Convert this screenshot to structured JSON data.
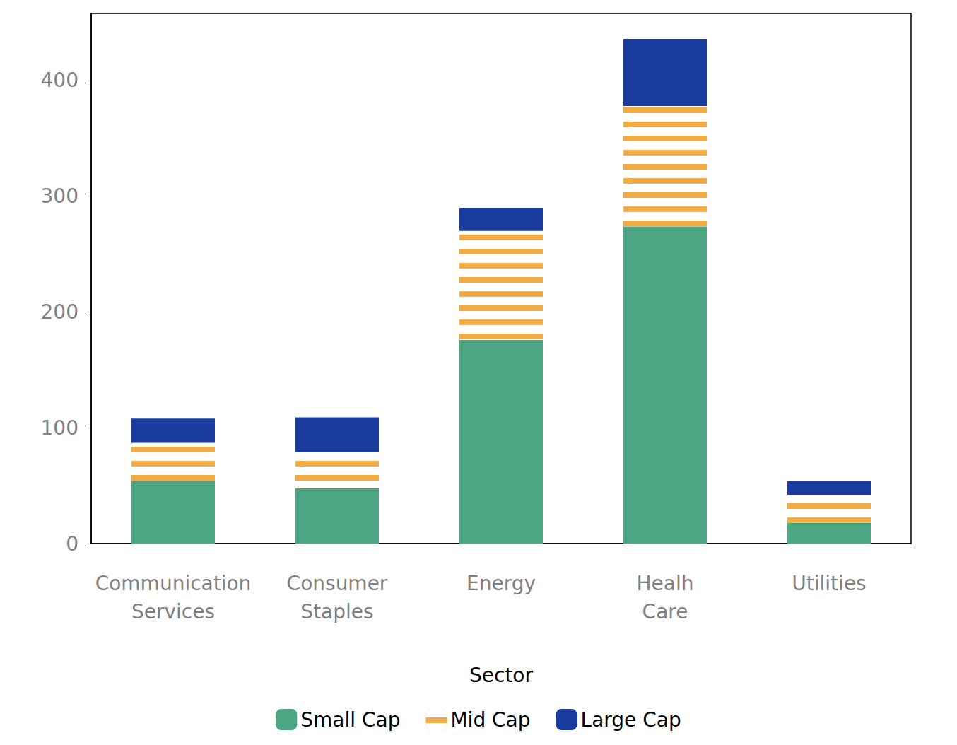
{
  "chart_data": {
    "type": "bar",
    "stacked": true,
    "grid": false,
    "legend": "bottom",
    "xlabel": "Sector",
    "categories": [
      "Communication Services",
      "Consumer Staples",
      "Energy",
      "Healh Care",
      "Utilities"
    ],
    "series": [
      {
        "name": "Small Cap",
        "color": "#4ca583",
        "values": [
          54,
          48,
          176,
          274,
          18
        ]
      },
      {
        "name": "Mid Cap",
        "color": "#f0ad45",
        "line_style": "striped",
        "values": [
          33,
          31,
          94,
          104,
          24
        ]
      },
      {
        "name": "Large Cap",
        "color": "#1a3c9e",
        "values": [
          21,
          30,
          20,
          58,
          12
        ]
      }
    ],
    "ylim": [
      0,
      458
    ],
    "yticks": [
      0,
      100,
      200,
      300,
      400
    ]
  }
}
